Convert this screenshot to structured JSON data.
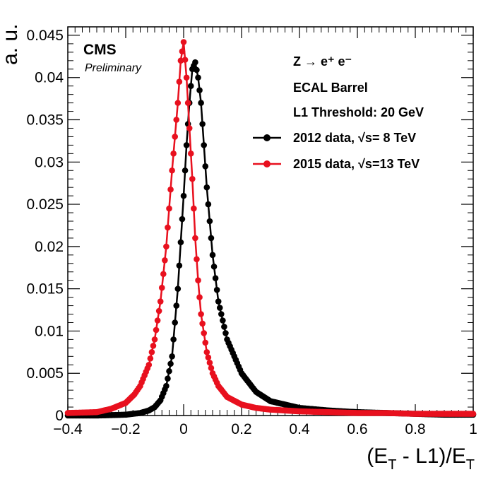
{
  "chart_data": {
    "type": "line",
    "xlabel": "(E_T - L1)/E_T",
    "xlabel_parts": [
      "(E",
      "T",
      " - L1)/E",
      "T"
    ],
    "ylabel": "a. u.",
    "xlim": [
      -0.4,
      1.0
    ],
    "ylim": [
      0,
      0.046
    ],
    "x_ticks": [
      -0.4,
      -0.2,
      0,
      0.2,
      0.4,
      0.6,
      0.8,
      1
    ],
    "x_tick_labels": [
      "−0.4",
      "−0.2",
      "0",
      "0.2",
      "0.4",
      "0.6",
      "0.8",
      "1"
    ],
    "y_ticks": [
      0,
      0.005,
      0.01,
      0.015,
      0.02,
      0.025,
      0.03,
      0.035,
      0.04,
      0.045
    ],
    "y_tick_labels": [
      "0",
      "0.005",
      "0.01",
      "0.015",
      "0.02",
      "0.025",
      "0.03",
      "0.035",
      "0.04",
      "0.045"
    ],
    "grid": false,
    "legend_position": "top-right",
    "annotations": {
      "experiment": "CMS",
      "status": "Preliminary",
      "process": "Z → e⁺ e⁻",
      "detector": "ECAL Barrel",
      "threshold": "L1 Threshold: 20 GeV"
    },
    "series": [
      {
        "name": "2012 data, √s= 8 TeV",
        "color": "#000000",
        "x": [
          -0.4,
          -0.3,
          -0.2,
          -0.15,
          -0.12,
          -0.1,
          -0.08,
          -0.06,
          -0.04,
          -0.02,
          0.0,
          0.01,
          0.02,
          0.03,
          0.04,
          0.05,
          0.06,
          0.07,
          0.08,
          0.1,
          0.12,
          0.15,
          0.2,
          0.25,
          0.3,
          0.4,
          0.5,
          0.6,
          0.7,
          0.8,
          0.9,
          1.0
        ],
        "y": [
          0.0,
          0.0,
          0.0001,
          0.0003,
          0.0006,
          0.001,
          0.0018,
          0.0035,
          0.007,
          0.015,
          0.026,
          0.032,
          0.037,
          0.041,
          0.0418,
          0.04,
          0.037,
          0.032,
          0.027,
          0.019,
          0.0135,
          0.009,
          0.005,
          0.0028,
          0.0017,
          0.0009,
          0.0006,
          0.0004,
          0.0003,
          0.0002,
          0.0001,
          0.0001
        ]
      },
      {
        "name": "2015 data, √s=13 TeV",
        "color": "#e8101e",
        "x": [
          -0.4,
          -0.3,
          -0.25,
          -0.2,
          -0.17,
          -0.15,
          -0.12,
          -0.1,
          -0.08,
          -0.06,
          -0.04,
          -0.02,
          -0.01,
          0.0,
          0.01,
          0.02,
          0.03,
          0.04,
          0.05,
          0.06,
          0.08,
          0.1,
          0.12,
          0.15,
          0.2,
          0.25,
          0.3,
          0.4,
          0.5,
          0.6,
          0.7,
          0.8,
          0.9,
          1.0
        ],
        "y": [
          0.0003,
          0.0004,
          0.0008,
          0.0015,
          0.0025,
          0.0035,
          0.006,
          0.009,
          0.0135,
          0.02,
          0.029,
          0.037,
          0.042,
          0.0442,
          0.04,
          0.034,
          0.028,
          0.021,
          0.016,
          0.012,
          0.0075,
          0.005,
          0.0035,
          0.0022,
          0.0013,
          0.0009,
          0.0007,
          0.0005,
          0.0004,
          0.0003,
          0.0003,
          0.0002,
          0.0002,
          0.0002
        ]
      }
    ]
  }
}
